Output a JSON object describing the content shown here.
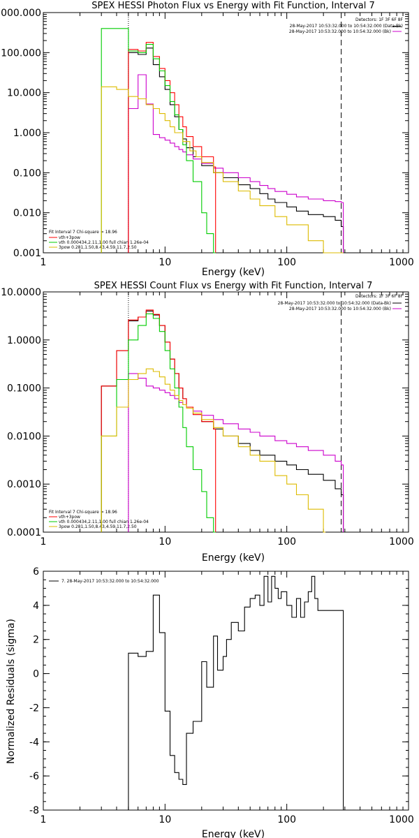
{
  "colors": {
    "data": "#000000",
    "bk": "#cc00cc",
    "total": "#ff0000",
    "vth": "#00cc00",
    "bpow": "#ddbb00"
  },
  "chart_data": [
    {
      "type": "line",
      "title": "SPEX HESSI Photon Flux vs Energy with Fit Function, Interval 7",
      "xlabel": "Energy (keV)",
      "ylabel": "",
      "xscale": "log",
      "yscale": "log",
      "xlim": [
        1,
        1000
      ],
      "ylim": [
        0.001,
        1000
      ],
      "xtick_labels": [
        "1",
        "10",
        "100",
        "1000"
      ],
      "ytick_labels": [
        "1000.000",
        "100.000",
        "10.000",
        "1.000",
        "0.100",
        "0.010",
        "0.001"
      ],
      "header": [
        "Detectors: 1F 3F 6F 8F",
        "28-May-2017 10:53:32.000 to 10:54:32.000 (Data-Bk)",
        "28-May-2017 10:53:32.000 to 10:54:32.000 (Bk)"
      ],
      "legend": [
        "Fit Interval 7   Chi-square = 18.96",
        "vth+3pow",
        "vth 0.000434,2.11,1.00  full chian 1.26e-04",
        "3pow 0.281,1.50,8.43,4.59,11.7,2.50"
      ],
      "vlines": [
        5,
        280
      ],
      "series": [
        {
          "name": "Data-Bk",
          "color_key": "data",
          "x": [
            5,
            6,
            7,
            8,
            9,
            10,
            11,
            12,
            13,
            14,
            15,
            17,
            20,
            25,
            30,
            40,
            50,
            60,
            70,
            80,
            100,
            120,
            150,
            200,
            250,
            280
          ],
          "y": [
            100,
            90,
            130,
            50,
            25,
            12,
            5,
            2.5,
            1.2,
            0.7,
            0.42,
            0.25,
            0.15,
            0.1,
            0.075,
            0.05,
            0.04,
            0.03,
            0.022,
            0.018,
            0.014,
            0.011,
            0.009,
            0.008,
            0.0065,
            0.0045
          ]
        },
        {
          "name": "Bk",
          "color_key": "bk",
          "x": [
            5,
            6,
            7,
            8,
            9,
            10,
            11,
            12,
            13,
            14,
            15,
            17,
            20,
            25,
            30,
            40,
            50,
            60,
            70,
            80,
            100,
            120,
            150,
            200,
            250,
            280
          ],
          "y": [
            4,
            28,
            5.2,
            0.9,
            0.75,
            0.65,
            0.55,
            0.45,
            0.38,
            0.33,
            0.28,
            0.22,
            0.17,
            0.13,
            0.1,
            0.075,
            0.06,
            0.048,
            0.04,
            0.034,
            0.029,
            0.025,
            0.022,
            0.02,
            0.019,
            0.018
          ]
        },
        {
          "name": "vth+3pow",
          "color_key": "total",
          "x": [
            5,
            6,
            7,
            8,
            9,
            10,
            11,
            12,
            13,
            14,
            15,
            17,
            20,
            25
          ],
          "y": [
            120,
            110,
            180,
            80,
            40,
            20,
            10,
            5,
            2.5,
            1.4,
            0.8,
            0.45,
            0.25,
            0.14
          ]
        },
        {
          "name": "vth",
          "color_key": "vth",
          "x": [
            3,
            4,
            5,
            6,
            7,
            8,
            9,
            10,
            11,
            12,
            13,
            14,
            15,
            17,
            20,
            22,
            25
          ],
          "y": [
            400,
            400,
            110,
            100,
            160,
            70,
            35,
            15,
            6,
            2.8,
            1.2,
            0.5,
            0.2,
            0.06,
            0.01,
            0.003,
            0.001
          ]
        },
        {
          "name": "3pow",
          "color_key": "bpow",
          "x": [
            3,
            4,
            5,
            6,
            7,
            8,
            9,
            10,
            11,
            12,
            14,
            16,
            18,
            20,
            25,
            30,
            40,
            50,
            60,
            80,
            100,
            150,
            200,
            280
          ],
          "y": [
            14,
            12,
            8,
            7,
            5,
            4,
            3,
            2,
            1.4,
            1,
            0.6,
            0.35,
            0.25,
            0.18,
            0.1,
            0.06,
            0.035,
            0.022,
            0.015,
            0.008,
            0.005,
            0.002,
            0.001,
            0.001
          ]
        }
      ]
    },
    {
      "type": "line",
      "title": "SPEX HESSI Count Flux vs Energy with Fit Function, Interval 7",
      "xlabel": "Energy (keV)",
      "ylabel": "",
      "xscale": "log",
      "yscale": "log",
      "xlim": [
        1,
        1000
      ],
      "ylim": [
        0.0001,
        10
      ],
      "xtick_labels": [
        "1",
        "10",
        "100",
        "1000"
      ],
      "ytick_labels": [
        "10.0000",
        "1.0000",
        "0.1000",
        "0.0100",
        "0.0010",
        "0.0001"
      ],
      "header": [
        "Detectors: 1F 3F 6F 8F",
        "28-May-2017 10:53:32.000 to 10:54:32.000 (Data-Bk)",
        "28-May-2017 10:53:32.000 to 10:54:32.000 (Bk)"
      ],
      "legend": [
        "Fit Interval 7   Chi-square = 18.96",
        "vth+3pow",
        "vth 0.000434,2.11,1.00  full chian 1.26e-04",
        "3pow 0.281,1.50,8.43,4.59,11.7,2.50"
      ],
      "vlines": [
        5,
        280
      ],
      "series": [
        {
          "name": "Data-Bk",
          "color_key": "data",
          "x": [
            3,
            4,
            5,
            6,
            7,
            8,
            9,
            10,
            11,
            12,
            13,
            14,
            15,
            17,
            20,
            25,
            30,
            40,
            50,
            60,
            80,
            100,
            120,
            150,
            200,
            250,
            280
          ],
          "y": [
            0.11,
            0.6,
            2.5,
            3,
            4,
            3.3,
            2,
            0.9,
            0.4,
            0.2,
            0.1,
            0.06,
            0.04,
            0.028,
            0.02,
            0.014,
            0.01,
            0.007,
            0.005,
            0.004,
            0.003,
            0.0025,
            0.002,
            0.0016,
            0.0012,
            0.0008,
            0.0006
          ]
        },
        {
          "name": "Bk",
          "color_key": "bk",
          "x": [
            5,
            6,
            7,
            8,
            9,
            10,
            11,
            12,
            13,
            14,
            15,
            17,
            20,
            25,
            30,
            40,
            50,
            60,
            80,
            100,
            120,
            150,
            200,
            250,
            280
          ],
          "y": [
            0.2,
            0.16,
            0.11,
            0.1,
            0.09,
            0.08,
            0.07,
            0.06,
            0.05,
            0.045,
            0.04,
            0.033,
            0.027,
            0.022,
            0.018,
            0.014,
            0.012,
            0.01,
            0.008,
            0.007,
            0.006,
            0.005,
            0.004,
            0.003,
            0.0025
          ]
        },
        {
          "name": "vth+3pow",
          "color_key": "total",
          "x": [
            3,
            4,
            5,
            6,
            7,
            8,
            9,
            10,
            11,
            12,
            13,
            14,
            15,
            17,
            20,
            25
          ],
          "y": [
            0.11,
            0.6,
            2.6,
            3,
            4.2,
            3.4,
            2,
            0.9,
            0.4,
            0.2,
            0.1,
            0.06,
            0.04,
            0.028,
            0.02,
            0.014
          ]
        },
        {
          "name": "vth",
          "color_key": "vth",
          "x": [
            3,
            4,
            5,
            6,
            7,
            8,
            9,
            10,
            11,
            12,
            13,
            14,
            15,
            17,
            20,
            22,
            25
          ],
          "y": [
            0.01,
            0.15,
            1,
            2,
            3.5,
            2.8,
            1.5,
            0.6,
            0.25,
            0.1,
            0.04,
            0.015,
            0.006,
            0.002,
            0.0007,
            0.0002,
            0.0001
          ]
        },
        {
          "name": "3pow",
          "color_key": "bpow",
          "x": [
            3,
            4,
            5,
            6,
            7,
            8,
            9,
            10,
            11,
            12,
            13,
            14,
            15,
            17,
            20,
            25,
            30,
            40,
            50,
            60,
            80,
            100,
            120,
            150,
            200
          ],
          "y": [
            0.01,
            0.04,
            0.15,
            0.2,
            0.25,
            0.22,
            0.17,
            0.12,
            0.09,
            0.07,
            0.055,
            0.045,
            0.038,
            0.03,
            0.022,
            0.015,
            0.01,
            0.006,
            0.004,
            0.003,
            0.0015,
            0.001,
            0.0006,
            0.0003,
            0.0001
          ]
        }
      ]
    },
    {
      "type": "line",
      "title": "",
      "xlabel": "Energy (keV)",
      "ylabel": "Normalized Residuals (sigma)",
      "xscale": "log",
      "yscale": "linear",
      "xlim": [
        1,
        1000
      ],
      "ylim": [
        -8,
        6
      ],
      "xtick_labels": [
        "1",
        "10",
        "100",
        "1000"
      ],
      "ytick_labels": [
        "6",
        "4",
        "2",
        "0",
        "-2",
        "-4",
        "-6",
        "-8"
      ],
      "legend": [
        "7. 28-May-2017 10:53:32.000 to 10:54:32.000"
      ],
      "series": [
        {
          "name": "7. 28-May-2017 10:53:32.000 to 10:54:32.000",
          "color_key": "data",
          "x": [
            5,
            6,
            7,
            8,
            9,
            10,
            11,
            12,
            13,
            14,
            15,
            17,
            20,
            22,
            25,
            27,
            30,
            32,
            35,
            40,
            45,
            50,
            55,
            60,
            65,
            70,
            75,
            80,
            85,
            90,
            100,
            110,
            120,
            130,
            140,
            150,
            160,
            170,
            180,
            200,
            220,
            250,
            280
          ],
          "y": [
            1.2,
            1.0,
            1.3,
            4.6,
            2.4,
            -2.2,
            -4.8,
            -5.8,
            -6.2,
            -6.5,
            -3.5,
            -2.8,
            0.7,
            -0.8,
            2.2,
            0.2,
            1.0,
            2.0,
            3.0,
            2.5,
            3.9,
            4.4,
            4.6,
            4.0,
            5.7,
            4.2,
            5.7,
            5.0,
            4.4,
            4.8,
            4.0,
            3.3,
            4.4,
            3.3,
            4.2,
            4.8,
            5.7,
            4.4,
            3.7,
            3.7,
            3.7,
            3.7,
            3.7
          ]
        }
      ]
    }
  ]
}
